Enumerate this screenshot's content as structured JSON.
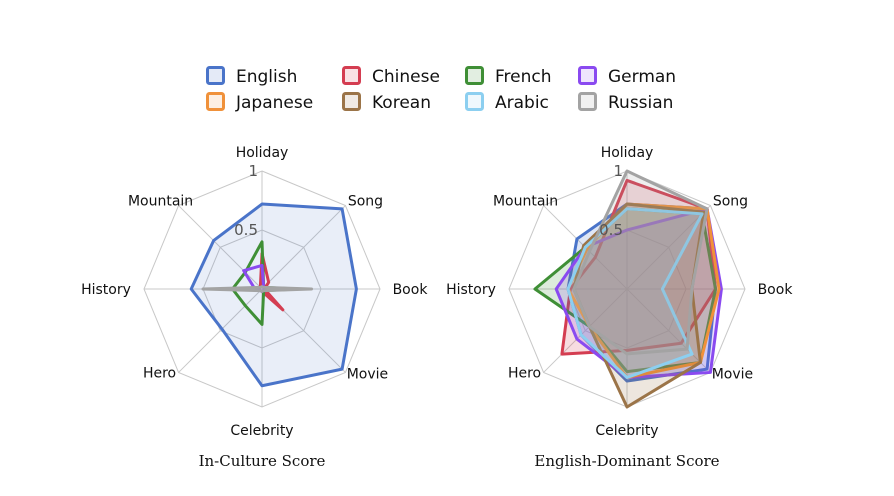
{
  "legend": [
    {
      "name": "English",
      "color": "#4a74c9"
    },
    {
      "name": "Chinese",
      "color": "#d43d51"
    },
    {
      "name": "French",
      "color": "#3f8f36"
    },
    {
      "name": "German",
      "color": "#8a4af0"
    },
    {
      "name": "Japanese",
      "color": "#f0913a"
    },
    {
      "name": "Korean",
      "color": "#9b7448"
    },
    {
      "name": "Arabic",
      "color": "#8ccff0"
    },
    {
      "name": "Russian",
      "color": "#a3a3a3"
    }
  ],
  "chart_data": [
    {
      "type": "radar",
      "title": "In-Culture Score",
      "axes": [
        "Holiday",
        "Song",
        "Book",
        "Movie",
        "Celebrity",
        "Hero",
        "History",
        "Mountain"
      ],
      "rmax": 1,
      "ticks": [
        {
          "value": 0.5,
          "label": "0.5"
        },
        {
          "value": 1,
          "label": "1"
        }
      ],
      "series": [
        {
          "name": "English",
          "values": [
            0.72,
            0.96,
            0.8,
            0.96,
            0.82,
            0.48,
            0.6,
            0.58
          ],
          "fill": true,
          "fill_opacity": 0.12
        },
        {
          "name": "Chinese",
          "values": [
            0.3,
            0.08,
            0.02,
            0.25,
            0.02,
            0.02,
            0.05,
            0.02
          ],
          "fill": false,
          "fill_opacity": 0
        },
        {
          "name": "French",
          "values": [
            0.4,
            0.02,
            0.3,
            0.02,
            0.3,
            0.2,
            0.25,
            0.2
          ],
          "fill": false,
          "fill_opacity": 0
        },
        {
          "name": "German",
          "values": [
            0.2,
            0.02,
            0.02,
            0.02,
            0.02,
            0.02,
            0.06,
            0.22
          ],
          "fill": false,
          "fill_opacity": 0
        },
        {
          "name": "Russian",
          "values": [
            0.02,
            0.02,
            0.42,
            0.02,
            0.02,
            0.02,
            0.5,
            0.02
          ],
          "fill": false,
          "fill_opacity": 0
        }
      ]
    },
    {
      "type": "radar",
      "title": "English-Dominant Score",
      "axes": [
        "Holiday",
        "Song",
        "Book",
        "Movie",
        "Celebrity",
        "Hero",
        "History",
        "Mountain"
      ],
      "rmax": 1,
      "ticks": [
        {
          "value": 0.5,
          "label": "0.5"
        },
        {
          "value": 1,
          "label": "1"
        }
      ],
      "series": [
        {
          "name": "English",
          "values": [
            0.72,
            0.96,
            0.75,
            0.96,
            0.78,
            0.55,
            0.5,
            0.6
          ],
          "fill": true,
          "fill_opacity": 0.18
        },
        {
          "name": "Chinese",
          "values": [
            0.92,
            0.96,
            0.75,
            0.65,
            0.52,
            0.78,
            0.48,
            0.38
          ],
          "fill": true,
          "fill_opacity": 0.18
        },
        {
          "name": "French",
          "values": [
            0.68,
            0.9,
            0.75,
            0.88,
            0.7,
            0.45,
            0.78,
            0.5
          ],
          "fill": true,
          "fill_opacity": 0.18
        },
        {
          "name": "German",
          "values": [
            0.5,
            0.96,
            0.8,
            1.0,
            0.75,
            0.6,
            0.6,
            0.5
          ],
          "fill": true,
          "fill_opacity": 0.18
        },
        {
          "name": "Japanese",
          "values": [
            0.72,
            0.96,
            0.78,
            0.88,
            0.75,
            0.45,
            0.5,
            0.48
          ],
          "fill": true,
          "fill_opacity": 0.18
        },
        {
          "name": "Korean",
          "values": [
            0.72,
            0.92,
            0.55,
            0.88,
            1.0,
            0.45,
            0.45,
            0.52
          ],
          "fill": true,
          "fill_opacity": 0.18
        },
        {
          "name": "Arabic",
          "values": [
            0.68,
            0.9,
            0.3,
            0.78,
            0.75,
            0.55,
            0.5,
            0.5
          ],
          "fill": true,
          "fill_opacity": 0.18
        },
        {
          "name": "Russian",
          "values": [
            1.0,
            0.96,
            0.55,
            0.72,
            0.55,
            0.45,
            0.45,
            0.45
          ],
          "fill": true,
          "fill_opacity": 0.18
        }
      ]
    }
  ]
}
